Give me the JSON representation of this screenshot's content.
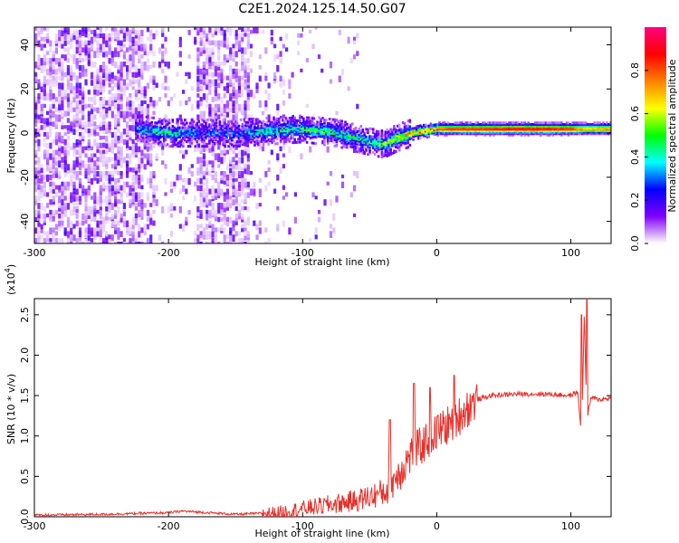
{
  "title": "C2E1.2024.125.14.50.G07",
  "chart_data": [
    {
      "type": "heatmap",
      "xlabel": "Height of straight line (km)",
      "ylabel": "Frequency (Hz)",
      "xlim": [
        -300,
        130
      ],
      "ylim": [
        -50,
        48
      ],
      "x_ticks": [
        -300,
        -200,
        -100,
        0,
        100
      ],
      "y_ticks": [
        -40,
        -20,
        0,
        20,
        40
      ],
      "colorbar": {
        "label": "Normalized spectral amplitude",
        "range": [
          0.0,
          1.0
        ],
        "ticks": [
          0.0,
          0.2,
          0.4,
          0.6,
          0.8
        ],
        "tick_labels": [
          "0.0",
          "0.2",
          "0.4",
          "0.6",
          "0.8"
        ],
        "colormap": [
          "#ffffff",
          "#8000ff",
          "#0000ff",
          "#00ffff",
          "#00ff00",
          "#ffff00",
          "#ff8000",
          "#ff0000",
          "#ff0080"
        ]
      },
      "signal_track": {
        "x": [
          -225,
          -200,
          -175,
          -150,
          -125,
          -100,
          -75,
          -50,
          -40,
          -30,
          -20,
          0,
          20,
          50,
          80,
          100,
          110,
          130
        ],
        "frequency": [
          2,
          0,
          0,
          0,
          1,
          2,
          0,
          -4,
          -5,
          -2,
          0,
          2,
          2,
          2,
          2,
          2,
          2,
          2
        ],
        "amplitude": [
          0.3,
          0.4,
          0.2,
          0.25,
          0.4,
          0.45,
          0.45,
          0.4,
          0.5,
          0.6,
          0.7,
          0.8,
          0.85,
          0.9,
          0.9,
          0.85,
          0.7,
          0.75
        ]
      }
    },
    {
      "type": "line",
      "xlabel": "Height of straight line (km)",
      "ylabel": "SNR (10 * v/v)",
      "y_multiplier": "(x10",
      "y_multiplier_exp": "4",
      "xlim": [
        -300,
        130
      ],
      "ylim": [
        0,
        2.7
      ],
      "x_ticks": [
        -300,
        -200,
        -100,
        0,
        100
      ],
      "y_ticks": [
        0.0,
        0.5,
        1.0,
        1.5,
        2.0,
        2.5
      ],
      "y_tick_labels": [
        "0.0",
        "0.5",
        "1.0",
        "1.5",
        "2.0",
        "2.5"
      ],
      "color": "#e8302a",
      "series": [
        {
          "x": [
            -300,
            -250,
            -200,
            -190,
            -150,
            -120,
            -100,
            -80,
            -60,
            -40,
            -30,
            -20,
            -10,
            0,
            10,
            20,
            30,
            40,
            60,
            80,
            100,
            105,
            108,
            110,
            112,
            115,
            120,
            130
          ],
          "values": [
            0.02,
            0.03,
            0.05,
            0.07,
            0.03,
            0.05,
            0.1,
            0.15,
            0.2,
            0.3,
            0.5,
            0.75,
            0.9,
            1.05,
            1.15,
            1.3,
            1.45,
            1.5,
            1.52,
            1.52,
            1.5,
            1.55,
            1.0,
            2.5,
            1.2,
            1.48,
            1.45,
            1.47
          ]
        }
      ],
      "spikes": [
        {
          "x": -35,
          "value": 1.2
        },
        {
          "x": -17,
          "value": 1.65
        },
        {
          "x": -5,
          "value": 1.6
        },
        {
          "x": 13,
          "value": 1.75
        },
        {
          "x": 108,
          "value": 2.5
        },
        {
          "x": 112,
          "value": 2.7
        }
      ]
    }
  ]
}
